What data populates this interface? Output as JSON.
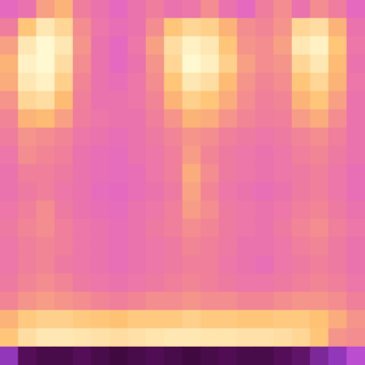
{
  "chart_data": {
    "type": "heatmap",
    "tick_labels": false,
    "zlim": [
      0,
      1
    ],
    "values": [
      [
        0.55,
        0.6,
        0.75,
        0.8,
        0.65,
        0.6,
        0.55,
        0.6,
        0.65,
        0.6,
        0.62,
        0.7,
        0.6,
        0.55,
        0.65,
        0.7,
        0.6,
        0.7,
        0.65,
        0.55
      ],
      [
        0.65,
        0.85,
        0.95,
        0.9,
        0.7,
        0.62,
        0.58,
        0.6,
        0.7,
        0.85,
        0.9,
        0.88,
        0.8,
        0.7,
        0.68,
        0.72,
        0.9,
        0.92,
        0.8,
        0.6
      ],
      [
        0.75,
        0.95,
        1.0,
        0.95,
        0.72,
        0.6,
        0.55,
        0.62,
        0.75,
        0.92,
        0.98,
        0.95,
        0.85,
        0.72,
        0.7,
        0.75,
        0.95,
        0.98,
        0.85,
        0.62
      ],
      [
        0.8,
        0.98,
        1.0,
        0.92,
        0.7,
        0.6,
        0.55,
        0.6,
        0.72,
        0.9,
        1.0,
        0.97,
        0.88,
        0.75,
        0.7,
        0.72,
        0.9,
        0.95,
        0.82,
        0.6
      ],
      [
        0.78,
        0.95,
        0.98,
        0.88,
        0.68,
        0.6,
        0.58,
        0.62,
        0.7,
        0.85,
        0.95,
        0.92,
        0.82,
        0.72,
        0.68,
        0.7,
        0.85,
        0.9,
        0.8,
        0.62
      ],
      [
        0.72,
        0.9,
        0.92,
        0.82,
        0.66,
        0.6,
        0.6,
        0.62,
        0.68,
        0.8,
        0.88,
        0.85,
        0.78,
        0.7,
        0.66,
        0.68,
        0.8,
        0.85,
        0.75,
        0.6
      ],
      [
        0.68,
        0.8,
        0.82,
        0.75,
        0.65,
        0.62,
        0.6,
        0.6,
        0.66,
        0.72,
        0.8,
        0.78,
        0.72,
        0.68,
        0.65,
        0.66,
        0.74,
        0.78,
        0.7,
        0.6
      ],
      [
        0.65,
        0.72,
        0.7,
        0.68,
        0.62,
        0.6,
        0.58,
        0.6,
        0.64,
        0.68,
        0.72,
        0.7,
        0.66,
        0.64,
        0.62,
        0.64,
        0.68,
        0.7,
        0.66,
        0.6
      ],
      [
        0.62,
        0.7,
        0.68,
        0.66,
        0.6,
        0.58,
        0.56,
        0.6,
        0.62,
        0.66,
        0.74,
        0.68,
        0.64,
        0.62,
        0.6,
        0.62,
        0.66,
        0.68,
        0.64,
        0.6
      ],
      [
        0.6,
        0.66,
        0.66,
        0.64,
        0.6,
        0.58,
        0.56,
        0.58,
        0.62,
        0.66,
        0.78,
        0.7,
        0.64,
        0.62,
        0.6,
        0.62,
        0.64,
        0.66,
        0.62,
        0.58
      ],
      [
        0.6,
        0.64,
        0.66,
        0.62,
        0.6,
        0.56,
        0.55,
        0.58,
        0.6,
        0.64,
        0.76,
        0.68,
        0.62,
        0.6,
        0.58,
        0.6,
        0.64,
        0.66,
        0.62,
        0.58
      ],
      [
        0.62,
        0.66,
        0.7,
        0.64,
        0.6,
        0.58,
        0.56,
        0.6,
        0.62,
        0.66,
        0.74,
        0.7,
        0.64,
        0.62,
        0.6,
        0.62,
        0.66,
        0.68,
        0.64,
        0.6
      ],
      [
        0.64,
        0.68,
        0.7,
        0.66,
        0.62,
        0.6,
        0.58,
        0.6,
        0.64,
        0.66,
        0.7,
        0.68,
        0.64,
        0.62,
        0.6,
        0.64,
        0.68,
        0.7,
        0.66,
        0.62
      ],
      [
        0.62,
        0.66,
        0.68,
        0.66,
        0.62,
        0.6,
        0.58,
        0.6,
        0.62,
        0.64,
        0.68,
        0.66,
        0.64,
        0.6,
        0.6,
        0.62,
        0.66,
        0.68,
        0.64,
        0.6
      ],
      [
        0.62,
        0.66,
        0.68,
        0.64,
        0.62,
        0.6,
        0.58,
        0.6,
        0.62,
        0.64,
        0.66,
        0.66,
        0.62,
        0.6,
        0.58,
        0.62,
        0.64,
        0.66,
        0.64,
        0.6
      ],
      [
        0.64,
        0.68,
        0.7,
        0.68,
        0.64,
        0.62,
        0.6,
        0.62,
        0.64,
        0.66,
        0.68,
        0.66,
        0.64,
        0.62,
        0.62,
        0.64,
        0.66,
        0.68,
        0.66,
        0.62
      ],
      [
        0.68,
        0.72,
        0.74,
        0.72,
        0.7,
        0.68,
        0.66,
        0.68,
        0.7,
        0.7,
        0.72,
        0.7,
        0.7,
        0.68,
        0.68,
        0.7,
        0.72,
        0.72,
        0.7,
        0.66
      ],
      [
        0.8,
        0.86,
        0.88,
        0.88,
        0.86,
        0.85,
        0.84,
        0.86,
        0.86,
        0.86,
        0.88,
        0.86,
        0.86,
        0.85,
        0.85,
        0.86,
        0.86,
        0.84,
        0.78,
        0.72
      ],
      [
        0.85,
        0.92,
        0.95,
        0.95,
        0.94,
        0.93,
        0.92,
        0.93,
        0.94,
        0.95,
        0.95,
        0.94,
        0.94,
        0.93,
        0.93,
        0.92,
        0.9,
        0.85,
        0.72,
        0.7
      ],
      [
        0.3,
        0.15,
        0.12,
        0.12,
        0.15,
        0.12,
        0.1,
        0.12,
        0.14,
        0.12,
        0.1,
        0.12,
        0.14,
        0.12,
        0.12,
        0.15,
        0.18,
        0.25,
        0.3,
        0.4
      ]
    ]
  }
}
